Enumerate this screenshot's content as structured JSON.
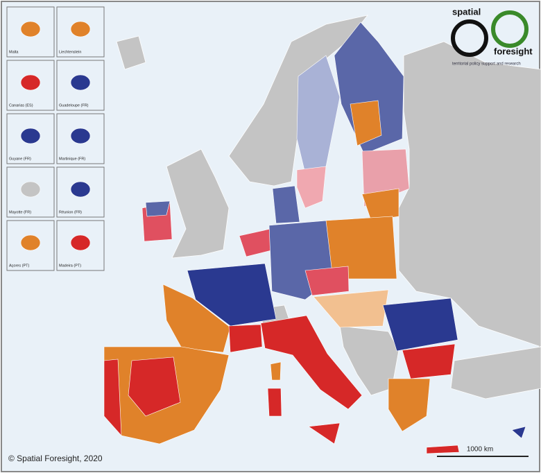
{
  "logo": {
    "word1": "spatial",
    "word2": "foresight",
    "tagline": "territorial policy support and research"
  },
  "insets": [
    {
      "label": "Malta",
      "color": "#e0822a"
    },
    {
      "label": "Liechtenstein",
      "color": "#e0822a"
    },
    {
      "label": "Canarias (ES)",
      "color": "#d62828"
    },
    {
      "label": "Guadeloupe (FR)",
      "color": "#2a3990"
    },
    {
      "label": "Guyane (FR)",
      "color": "#2a3990"
    },
    {
      "label": "Martinique (FR)",
      "color": "#2a3990"
    },
    {
      "label": "Mayotte (FR)",
      "color": "#c4c4c4"
    },
    {
      "label": "Réunion (FR)",
      "color": "#2a3990"
    },
    {
      "label": "Açores (PT)",
      "color": "#e0822a"
    },
    {
      "label": "Madeira (PT)",
      "color": "#d62828"
    }
  ],
  "copyright": "© Spatial Foresight, 2020",
  "scale_bar": "1000 km"
}
